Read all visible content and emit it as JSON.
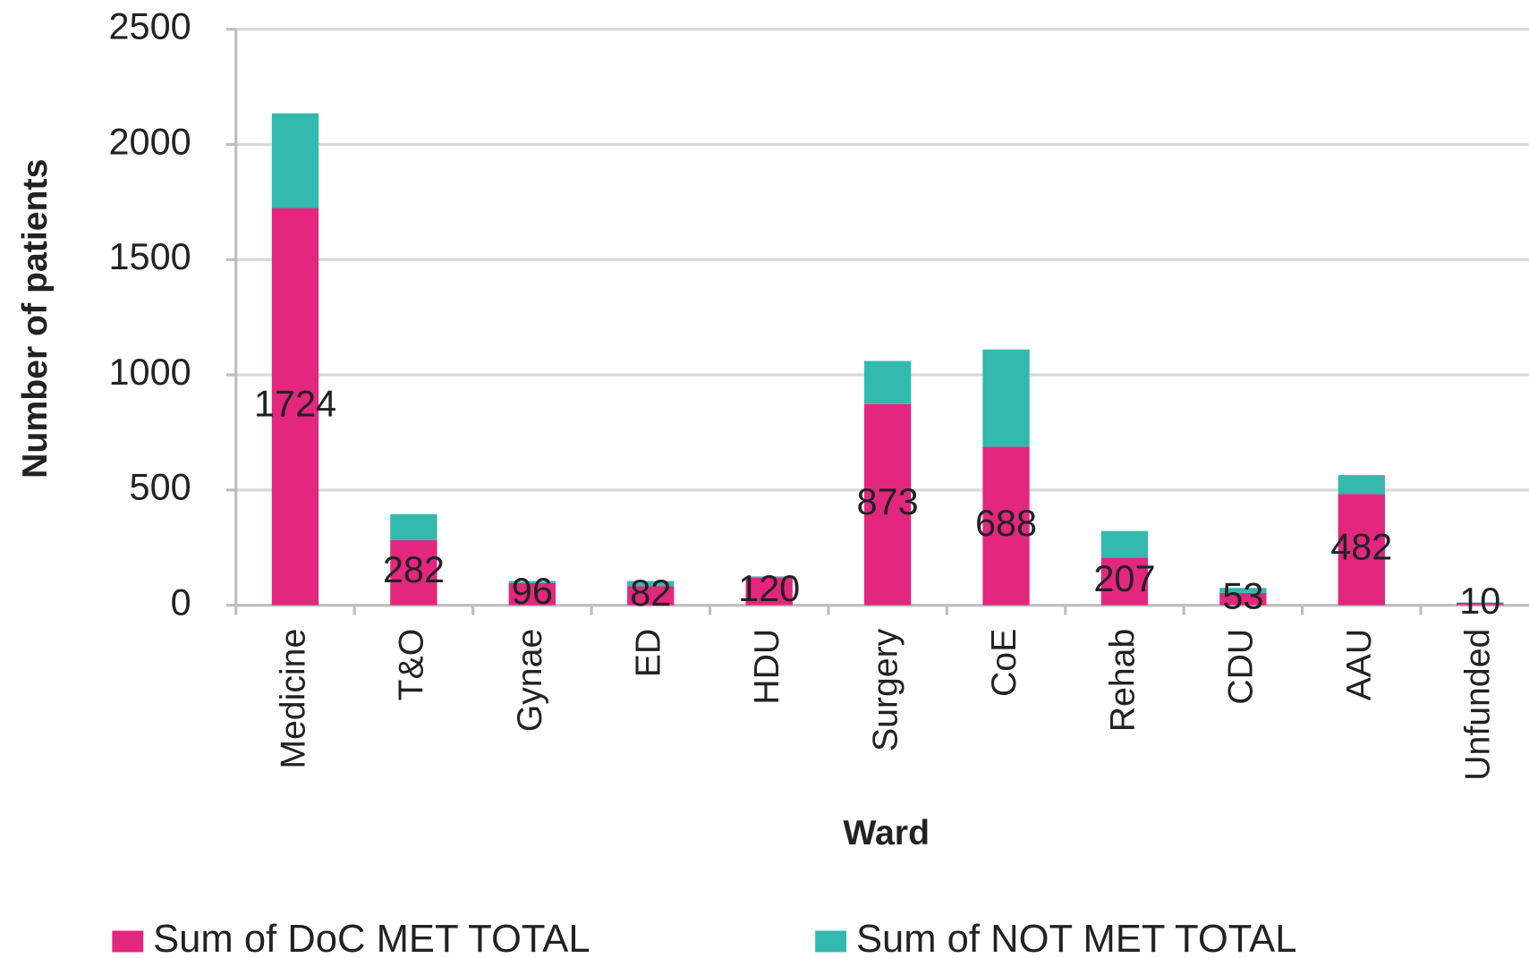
{
  "chart_data": {
    "type": "stacked_bar",
    "y_label": "Number of patients",
    "x_label": "Ward",
    "categories": [
      "Medicine",
      "T&O",
      "Gynae",
      "ED",
      "HDU",
      "Surgery",
      "CoE",
      "Rehab",
      "CDU",
      "AAU",
      "Unfunded"
    ],
    "series": [
      {
        "name": "Sum of DoC MET TOTAL",
        "color": "#e3267e",
        "values": [
          1724,
          282,
          96,
          82,
          120,
          873,
          688,
          207,
          53,
          482,
          10
        ]
      },
      {
        "name": "Sum of NOT MET TOTAL",
        "color": "#33b9ae",
        "values": [
          411,
          113,
          9,
          23,
          5,
          187,
          422,
          115,
          22,
          83,
          2
        ]
      }
    ],
    "ylim": [
      0,
      2500
    ],
    "yticks": [
      0,
      500,
      1000,
      1500,
      2000,
      2500
    ],
    "grid": true,
    "legend": "bottom"
  }
}
